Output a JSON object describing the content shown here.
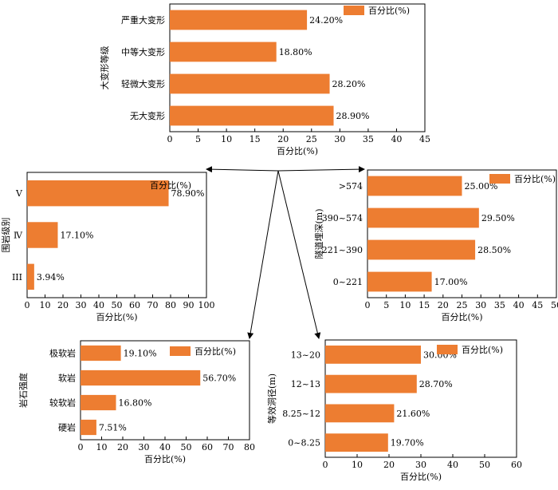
{
  "accent_color": "#ED7D31",
  "arrow_color": "#000000",
  "chart_data": [
    {
      "id": "deformation",
      "type": "bar",
      "orientation": "horizontal",
      "categories": [
        "严重大变形",
        "中等大变形",
        "轻微大变形",
        "无大变形"
      ],
      "values": [
        24.2,
        18.8,
        28.2,
        28.9
      ],
      "value_labels": [
        "24.20%",
        "18.80%",
        "28.20%",
        "28.90%"
      ],
      "xlabel": "百分比(%)",
      "ylabel": "大变形等级",
      "xlim": [
        0,
        45
      ],
      "xticks": [
        0,
        5,
        10,
        15,
        20,
        25,
        30,
        35,
        40,
        45
      ],
      "series": [
        {
          "name": "百分比(%)"
        }
      ],
      "legend_position": "top-right",
      "color": "#ED7D31"
    },
    {
      "id": "rock_grade",
      "type": "bar",
      "orientation": "horizontal",
      "categories": [
        "V",
        "Ⅳ",
        "III"
      ],
      "values": [
        78.9,
        17.1,
        3.94
      ],
      "value_labels": [
        "78.90%",
        "17.10%",
        "3.94%"
      ],
      "xlabel": "百分比(%)",
      "ylabel": "围岩级别",
      "xlim": [
        0,
        100
      ],
      "xticks": [
        0,
        10,
        20,
        30,
        40,
        50,
        60,
        70,
        80,
        90,
        100
      ],
      "series": [
        {
          "name": "百分比(%)"
        }
      ],
      "legend_position": "top-right",
      "color": "#ED7D31"
    },
    {
      "id": "burial_depth",
      "type": "bar",
      "orientation": "horizontal",
      "categories": [
        ">574",
        "390~574",
        "221~390",
        "0~221"
      ],
      "values": [
        25.0,
        29.5,
        28.5,
        17.0
      ],
      "value_labels": [
        "25.00%",
        "29.50%",
        "28.50%",
        "17.00%"
      ],
      "xlabel": "百分比(%)",
      "ylabel": "隧道埋深(m)",
      "xlim": [
        0,
        50
      ],
      "xticks": [
        0,
        5,
        10,
        15,
        20,
        25,
        30,
        35,
        40,
        45,
        50
      ],
      "series": [
        {
          "name": "百分比(%)"
        }
      ],
      "legend_position": "top-right",
      "color": "#ED7D31"
    },
    {
      "id": "rock_strength",
      "type": "bar",
      "orientation": "horizontal",
      "categories": [
        "极软岩",
        "软岩",
        "较软岩",
        "硬岩"
      ],
      "values": [
        19.1,
        56.7,
        16.8,
        7.51
      ],
      "value_labels": [
        "19.10%",
        "56.70%",
        "16.80%",
        "7.51%"
      ],
      "xlabel": "百分比(%)",
      "ylabel": "岩石强度",
      "xlim": [
        0,
        80
      ],
      "xticks": [
        0,
        10,
        20,
        30,
        40,
        50,
        60,
        70,
        80
      ],
      "series": [
        {
          "name": "百分比(%)"
        }
      ],
      "legend_position": "top-right",
      "color": "#ED7D31"
    },
    {
      "id": "tunnel_diameter",
      "type": "bar",
      "orientation": "horizontal",
      "categories": [
        "13~20",
        "12~13",
        "8.25~12",
        "0~8.25"
      ],
      "values": [
        30.0,
        28.7,
        21.6,
        19.7
      ],
      "value_labels": [
        "30.00%",
        "28.70%",
        "21.60%",
        "19.70%"
      ],
      "xlabel": "百分比(%)",
      "ylabel": "等效洞径(m)",
      "xlim": [
        0,
        60
      ],
      "xticks": [
        0,
        10,
        20,
        30,
        40,
        50,
        60
      ],
      "series": [
        {
          "name": "百分比(%)"
        }
      ],
      "legend_position": "top-right",
      "color": "#ED7D31"
    }
  ]
}
